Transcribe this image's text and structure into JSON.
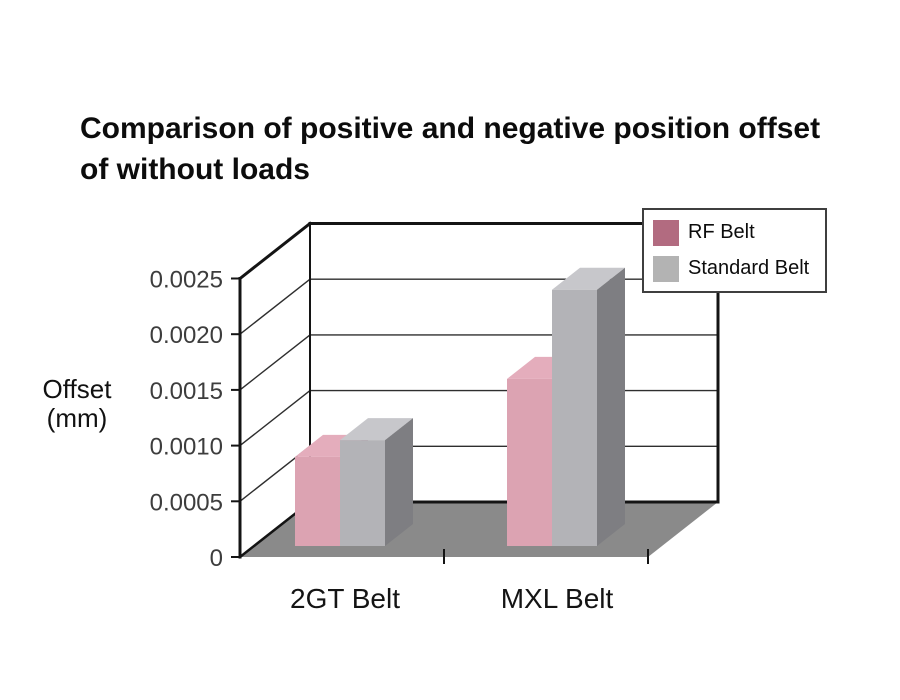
{
  "header": {
    "title_lines": [
      "Comparison of positive and negative position offset",
      "of without loads"
    ]
  },
  "chart_data": {
    "type": "bar",
    "projection": "3d",
    "title": "Comparison of positive and negative position offset of without loads",
    "categories": [
      "2GT Belt",
      "MXL Belt"
    ],
    "series": [
      {
        "name": "RF Belt",
        "color": "#b26b80",
        "values": [
          0.0008,
          0.0015
        ],
        "faces": {
          "front": "#dca3b2",
          "top": "#e4adbc",
          "side": "#b87f92"
        }
      },
      {
        "name": "Standard Belt",
        "color": "#b3b3b3",
        "values": [
          0.00095,
          0.0023
        ],
        "faces": {
          "front": "#b3b3b7",
          "top": "#c7c7cb",
          "side": "#7e7e82"
        }
      }
    ],
    "ylabel": "Offset (mm)",
    "ylabel_lines": [
      "Offset",
      "(mm)"
    ],
    "ylim": [
      0,
      0.0025
    ],
    "ytick_values": [
      0,
      0.0005,
      0.001,
      0.0015,
      0.002,
      0.0025
    ],
    "ytick_labels": [
      "0",
      "0.0005",
      "0.0010",
      "0.0015",
      "0.0020",
      "0.0025"
    ],
    "grid": true,
    "legend_position": "top-right",
    "colors": {
      "floor": "#8a8a8a",
      "wall": "#ffffff",
      "edge_line": "#141414",
      "grid_line": "#2e2e2e",
      "tick_label": "#3d3d3d",
      "category_label": "#141414",
      "legend_border": "#3f3f3f"
    }
  }
}
